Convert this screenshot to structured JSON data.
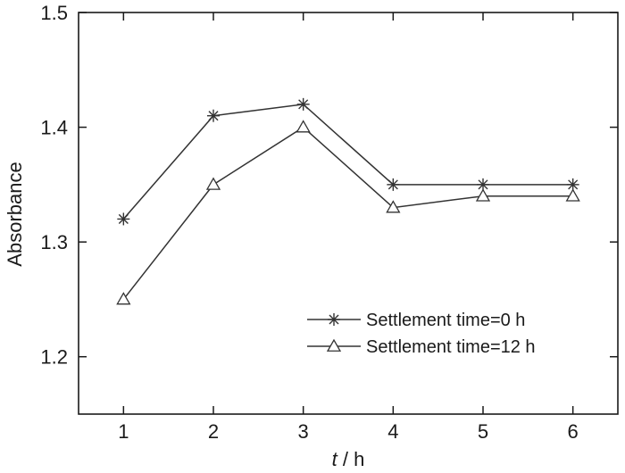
{
  "chart_data": {
    "type": "line",
    "x": [
      1,
      2,
      3,
      4,
      5,
      6
    ],
    "series": [
      {
        "name": "Settlement time=0 h",
        "marker": "asterisk",
        "values": [
          1.32,
          1.41,
          1.42,
          1.35,
          1.35,
          1.35
        ]
      },
      {
        "name": "Settlement time=12 h",
        "marker": "triangle",
        "values": [
          1.25,
          1.35,
          1.4,
          1.33,
          1.34,
          1.34
        ]
      }
    ],
    "xlabel_var": "t",
    "xlabel_unit": " / h",
    "ylabel": "Absorbance",
    "xlim": [
      0.5,
      6.5
    ],
    "ylim": [
      1.15,
      1.5
    ],
    "xticks": [
      "1",
      "2",
      "3",
      "4",
      "5",
      "6"
    ],
    "yticks": [
      "1.2",
      "1.3",
      "1.4",
      "1.5"
    ],
    "legend_position": "bottom-right",
    "grid": false,
    "colors": {
      "line": "#333333",
      "axis": "#1a1a1a",
      "background": "#ffffff"
    }
  }
}
